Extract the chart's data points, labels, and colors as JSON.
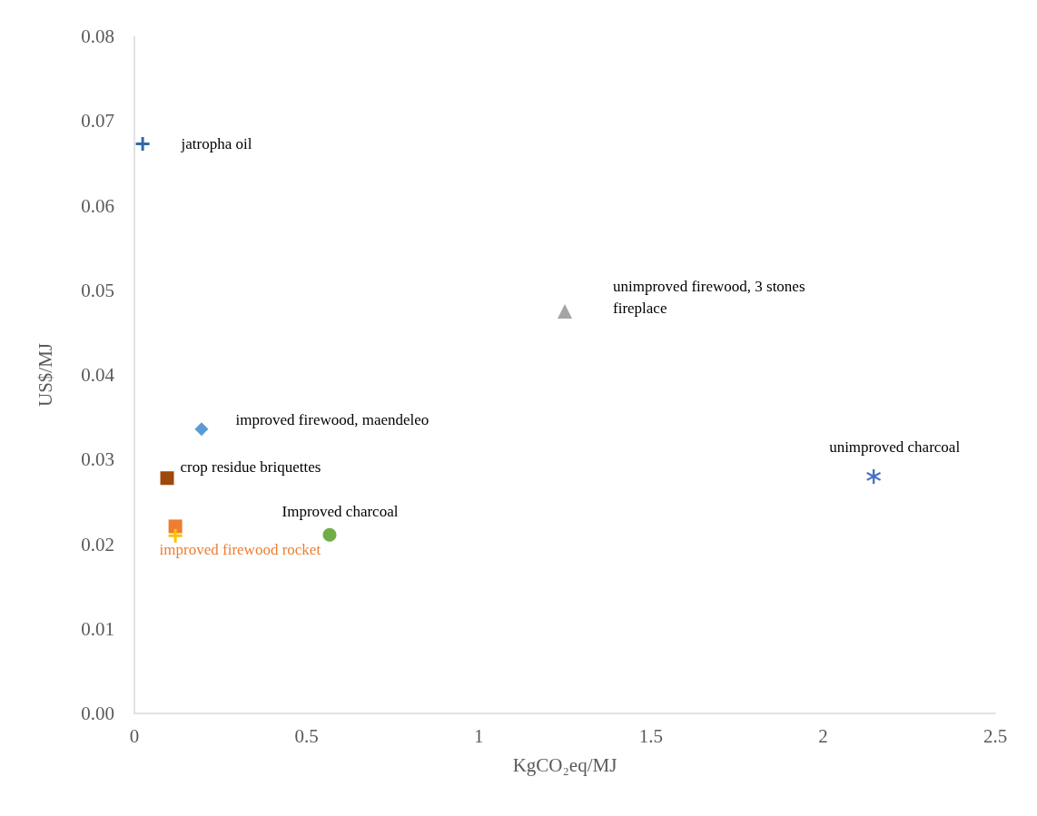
{
  "chart_data": {
    "type": "scatter",
    "xlabel": "KgCO₂eq/MJ",
    "ylabel": "US$/MJ",
    "xlim": [
      0,
      2.5
    ],
    "xticks": [
      0,
      0.5,
      1,
      1.5,
      2,
      2.5
    ],
    "ylim": [
      0,
      0.08
    ],
    "yticks": [
      {
        "value": 0,
        "label": "0.00"
      },
      {
        "value": 0.01,
        "label": "0.01"
      },
      {
        "value": 0.02,
        "label": "0.02"
      },
      {
        "value": 0.03,
        "label": "0.03"
      },
      {
        "value": 0.04,
        "label": "0.04"
      },
      {
        "value": 0.05,
        "label": "0.05"
      },
      {
        "value": 0.06,
        "label": "0.06"
      },
      {
        "value": 0.07,
        "label": "0.07"
      },
      {
        "value": 0.08,
        "label": "0.08"
      }
    ],
    "grid": false,
    "legend": false,
    "series": [
      {
        "name": "jatropha oil",
        "color": "#2e6aa6",
        "marker": "cross",
        "x": [
          0.024
        ],
        "values": [
          0.0673
        ]
      },
      {
        "name": "unimproved firewood, 3 stones fireplace",
        "color": "#a5a5a5",
        "marker": "triangle",
        "x": [
          1.25
        ],
        "values": [
          0.0475
        ]
      },
      {
        "name": "improved firewood, maendeleo",
        "color": "#5b9bd5",
        "marker": "diamond",
        "x": [
          0.195
        ],
        "values": [
          0.0336
        ]
      },
      {
        "name": "crop residue briquettes",
        "color": "#9e480e",
        "marker": "square",
        "x": [
          0.095
        ],
        "values": [
          0.0278
        ]
      },
      {
        "name": "improved firewood rocket",
        "color": "#ed7d31",
        "marker": "square",
        "x": [
          0.119
        ],
        "values": [
          0.0221
        ]
      },
      {
        "color": "#ffc000",
        "marker": "cross",
        "x": [
          0.119
        ],
        "values": [
          0.021
        ]
      },
      {
        "name": "Improved charcoal",
        "color": "#70ad47",
        "marker": "circle",
        "x": [
          0.567
        ],
        "values": [
          0.0211
        ]
      },
      {
        "name": "unimproved charcoal",
        "color": "#4472c4",
        "marker": "star",
        "x": [
          2.147
        ],
        "values": [
          0.028
        ]
      }
    ]
  }
}
